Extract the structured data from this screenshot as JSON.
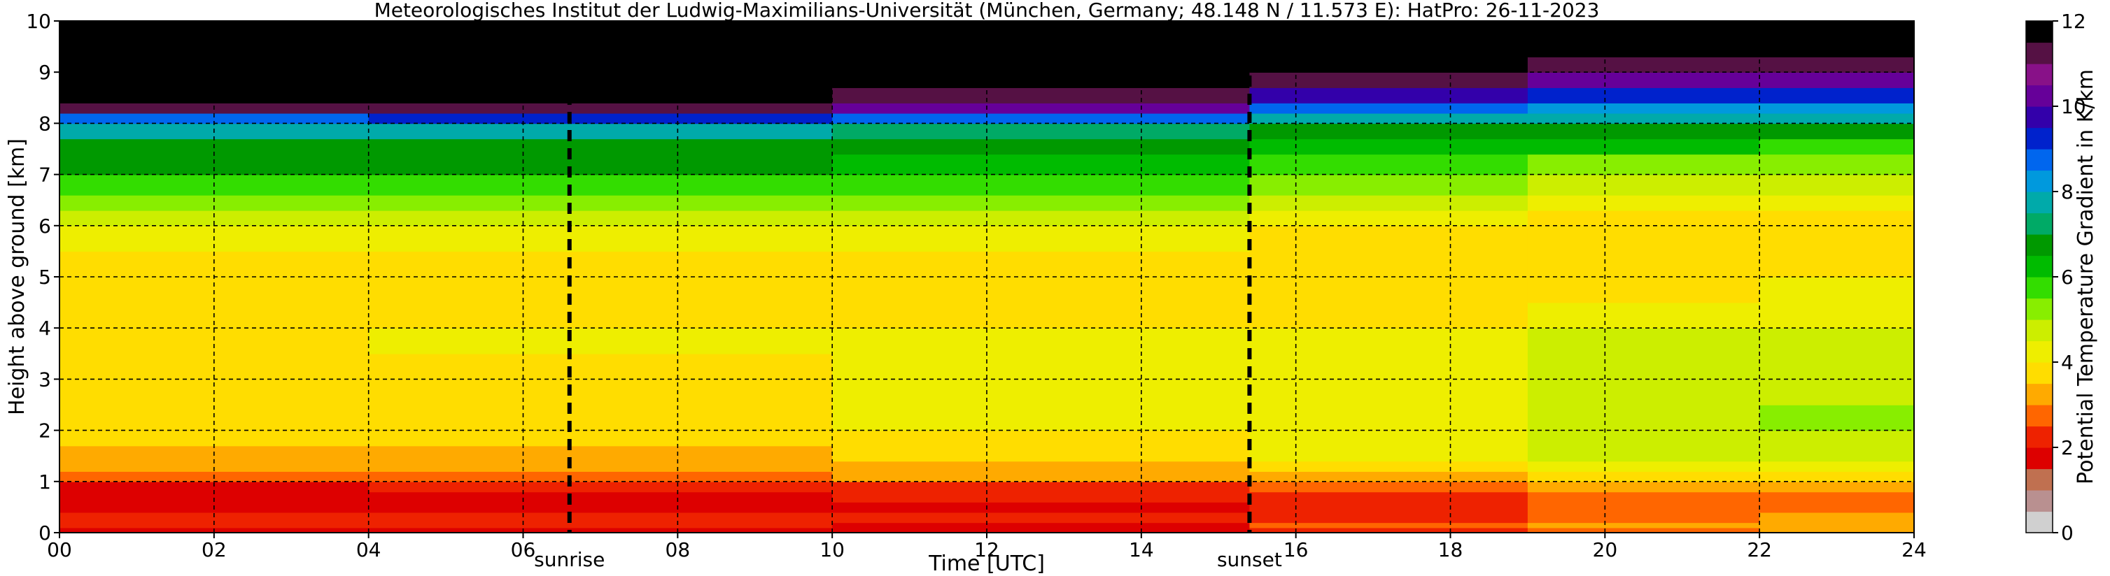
{
  "chart_data": {
    "type": "heatmap",
    "title": "Meteorologisches Institut der Ludwig-Maximilians-Universität (München, Germany; 48.148 N / 11.573 E):    HatPro: 26-11-2023",
    "xlabel": "Time [UTC]",
    "ylabel": "Height above ground [km]",
    "xlim": [
      0,
      24
    ],
    "ylim": [
      0,
      10
    ],
    "x_ticks": [
      0,
      2,
      4,
      6,
      8,
      10,
      12,
      14,
      16,
      18,
      20,
      22,
      24
    ],
    "x_tick_labels": [
      "00",
      "02",
      "04",
      "06",
      "08",
      "10",
      "12",
      "14",
      "16",
      "18",
      "20",
      "22",
      "24"
    ],
    "y_ticks": [
      0,
      1,
      2,
      3,
      4,
      5,
      6,
      7,
      8,
      9,
      10
    ],
    "y_tick_labels": [
      "0",
      "1",
      "2",
      "3",
      "4",
      "5",
      "6",
      "7",
      "8",
      "9",
      "10"
    ],
    "grid": true,
    "annotations": [
      {
        "x": 6.6,
        "label": "sunrise"
      },
      {
        "x": 15.4,
        "label": "sunset"
      }
    ],
    "colorbar": {
      "label": "Potential Temperature Gradient in K/km",
      "range": [
        0,
        12
      ],
      "ticks": [
        0,
        2,
        4,
        6,
        8,
        10,
        12
      ],
      "tick_labels": [
        "0",
        "2",
        "4",
        "6",
        "8",
        "10",
        "12"
      ],
      "colors": [
        "#d0d0d0",
        "#b99090",
        "#c07050",
        "#dd0000",
        "#ee2200",
        "#ff6600",
        "#ffaa00",
        "#ffdd00",
        "#eeee00",
        "#ccee00",
        "#88ee00",
        "#33dd00",
        "#00bb00",
        "#009900",
        "#00aa66",
        "#00aaaa",
        "#0099dd",
        "#0066ee",
        "#0022cc",
        "#3300aa",
        "#660099",
        "#881188",
        "#551144",
        "#000000"
      ]
    },
    "profile_heights_km": [
      0.0,
      0.1,
      0.2,
      0.4,
      0.6,
      0.8,
      1.0,
      1.2,
      1.4,
      1.7,
      2.0,
      2.5,
      3.0,
      3.5,
      4.0,
      4.5,
      5.0,
      5.5,
      6.0,
      6.3,
      6.6,
      7.0,
      7.4,
      7.7,
      8.0,
      8.2,
      8.4,
      8.7,
      9.0,
      9.3,
      9.6,
      10.0
    ],
    "time_profiles": [
      {
        "t_start": 0,
        "t_end": 4,
        "values": [
          1.5,
          2.0,
          2.2,
          1.8,
          1.8,
          1.9,
          2.5,
          3.0,
          3.3,
          3.5,
          3.6,
          3.7,
          3.7,
          3.8,
          3.6,
          3.5,
          3.8,
          4.0,
          4.5,
          5.0,
          5.6,
          6.5,
          6.8,
          7.5,
          8.5,
          11.0,
          11.5,
          12.0,
          12.0,
          12.0,
          12.0,
          12.0
        ]
      },
      {
        "t_start": 4,
        "t_end": 10,
        "values": [
          1.5,
          2.0,
          2.0,
          1.8,
          1.9,
          2.0,
          2.7,
          3.1,
          3.4,
          3.6,
          3.8,
          3.9,
          3.9,
          4.0,
          3.7,
          3.6,
          3.8,
          4.1,
          4.6,
          5.1,
          5.7,
          6.5,
          6.8,
          7.6,
          9.0,
          11.2,
          11.5,
          12.0,
          12.0,
          12.0,
          12.0,
          12.0
        ]
      },
      {
        "t_start": 10,
        "t_end": 15.4,
        "values": [
          1.6,
          1.9,
          2.0,
          1.9,
          2.0,
          2.2,
          3.0,
          3.3,
          3.6,
          3.8,
          4.0,
          4.1,
          4.0,
          4.1,
          3.8,
          3.7,
          3.9,
          4.2,
          4.7,
          5.2,
          5.8,
          6.4,
          6.6,
          7.2,
          8.6,
          10.2,
          11.3,
          12.0,
          12.0,
          12.0,
          12.0,
          12.0
        ]
      },
      {
        "t_start": 15.4,
        "t_end": 19,
        "values": [
          2.3,
          2.5,
          2.4,
          2.2,
          2.2,
          2.5,
          3.3,
          3.8,
          4.1,
          4.3,
          4.4,
          4.2,
          4.2,
          4.3,
          3.9,
          3.8,
          3.8,
          3.8,
          4.2,
          4.6,
          5.2,
          5.8,
          6.3,
          6.7,
          7.6,
          8.5,
          9.6,
          11.3,
          12.0,
          12.0,
          12.0,
          12.0
        ]
      },
      {
        "t_start": 19,
        "t_end": 22,
        "values": [
          2.8,
          3.0,
          2.9,
          2.5,
          2.6,
          3.0,
          3.7,
          4.2,
          4.5,
          4.7,
          4.8,
          4.6,
          4.5,
          4.5,
          4.1,
          3.9,
          3.8,
          3.6,
          3.8,
          4.1,
          4.6,
          5.3,
          6.0,
          6.6,
          7.6,
          8.4,
          9.2,
          10.2,
          11.3,
          12.0,
          12.0,
          12.0
        ]
      },
      {
        "t_start": 22,
        "t_end": 24,
        "values": [
          3.0,
          3.3,
          3.2,
          2.7,
          2.8,
          3.2,
          3.9,
          4.4,
          4.7,
          4.9,
          5.0,
          4.8,
          4.7,
          4.6,
          4.2,
          4.0,
          3.8,
          3.6,
          3.7,
          4.0,
          4.5,
          5.2,
          5.9,
          6.6,
          7.5,
          8.3,
          9.0,
          10.0,
          11.3,
          12.0,
          12.0,
          12.0
        ]
      }
    ]
  }
}
